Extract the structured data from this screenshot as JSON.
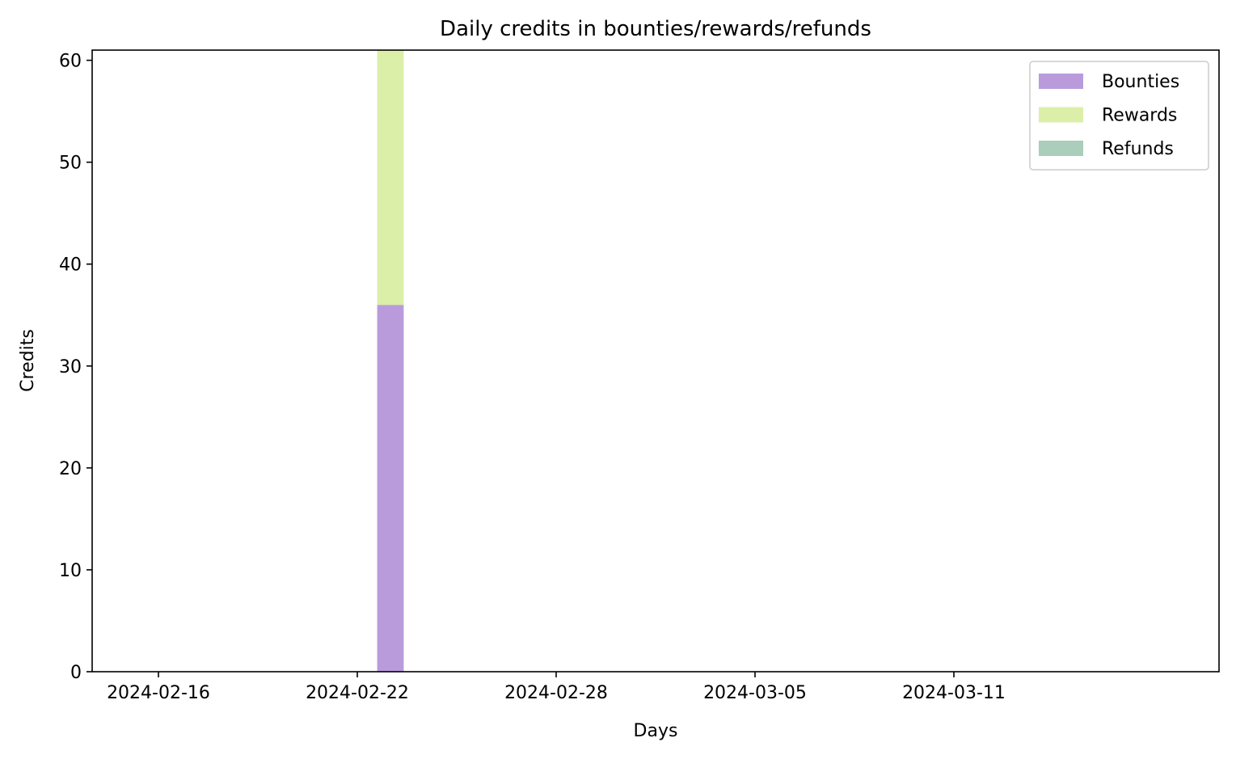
{
  "chart_data": {
    "type": "bar",
    "stacked": true,
    "title": "Daily credits in bounties/rewards/refunds",
    "xlabel": "Days",
    "ylabel": "Credits",
    "x_axis": {
      "type": "date",
      "range": [
        "2024-02-14",
        "2024-03-19"
      ],
      "ticks": [
        "2024-02-16",
        "2024-02-22",
        "2024-02-28",
        "2024-03-05",
        "2024-03-11"
      ]
    },
    "y_axis": {
      "range": [
        0,
        61
      ],
      "ticks": [
        0,
        10,
        20,
        30,
        40,
        50,
        60
      ]
    },
    "grid": false,
    "legend_position": "top-right",
    "categories": [
      "2024-02-23"
    ],
    "series": [
      {
        "name": "Bounties",
        "color": "#b99bdc",
        "values": [
          36
        ]
      },
      {
        "name": "Rewards",
        "color": "#dcefa8",
        "values": [
          25
        ]
      },
      {
        "name": "Refunds",
        "color": "#abcdbc",
        "values": [
          0
        ]
      }
    ]
  }
}
